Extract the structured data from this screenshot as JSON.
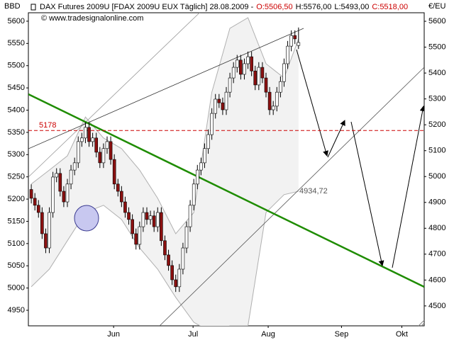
{
  "chart_data": {
    "type": "candlestick",
    "title": "DAX Futures 2009U [FDAX 2009U EUX  Täglich] 28.08.2009 -",
    "ohlc_labels": [
      "O:5506,50",
      "H:5576,00",
      "L:5493,00",
      "C:5518,00"
    ],
    "ohlc_colors": [
      "#cc0000",
      "#000000",
      "#000000",
      "#cc0000"
    ],
    "subtitle": "© www.tradesignalonline.com",
    "y_label": "BBD",
    "y2_label": "€/EU",
    "annotation": "4934,72",
    "x": [
      0,
      1,
      2,
      3,
      4,
      5,
      6,
      7,
      8,
      9,
      10,
      11,
      12,
      13,
      14,
      15,
      16,
      17,
      18,
      19,
      20,
      21,
      22,
      23,
      24,
      25,
      26,
      27,
      28,
      29,
      30,
      31,
      32,
      33,
      34,
      35,
      36,
      37,
      38,
      39,
      40,
      41,
      42,
      43,
      44,
      45,
      46,
      47,
      48,
      49,
      50,
      51,
      52,
      53,
      54,
      55,
      56,
      57,
      58,
      59,
      60,
      61,
      62,
      63,
      64,
      65,
      66,
      67,
      68,
      69,
      70,
      71,
      72,
      73,
      74
    ],
    "open": [
      4950,
      4916,
      4889,
      4861,
      4779,
      4724,
      4861,
      4998,
      5012,
      4943,
      4902,
      4971,
      5025,
      5053,
      5135,
      5149,
      5190,
      5135,
      5149,
      5094,
      5053,
      5108,
      5135,
      5066,
      4971,
      4943,
      4902,
      4861,
      4834,
      4779,
      4738,
      4806,
      4861,
      4834,
      4848,
      4806,
      4861,
      4752,
      4697,
      4656,
      4601,
      4574,
      4642,
      4724,
      4806,
      4889,
      4971,
      5025,
      5053,
      5108,
      5162,
      5244,
      5299,
      5285,
      5258,
      5326,
      5381,
      5422,
      5450,
      5395,
      5436,
      5463,
      5408,
      5354,
      5422,
      5381,
      5326,
      5258,
      5272,
      5326,
      5367,
      5436,
      5504,
      5545,
      5506.5
    ],
    "high": [
      4970,
      4936,
      4909,
      4881,
      4799,
      4881,
      5018,
      5032,
      5032,
      4963,
      4991,
      5045,
      5073,
      5155,
      5169,
      5210,
      5210,
      5169,
      5169,
      5114,
      5128,
      5155,
      5155,
      5086,
      4991,
      4963,
      4922,
      4881,
      4854,
      4799,
      4826,
      4881,
      4881,
      4868,
      4868,
      4881,
      4881,
      4772,
      4717,
      4676,
      4621,
      4662,
      4744,
      4826,
      4909,
      4991,
      5045,
      5073,
      5128,
      5182,
      5264,
      5319,
      5319,
      5305,
      5346,
      5401,
      5442,
      5470,
      5470,
      5456,
      5483,
      5483,
      5428,
      5442,
      5442,
      5401,
      5346,
      5292,
      5346,
      5387,
      5456,
      5524,
      5565,
      5565,
      5576
    ],
    "low": [
      4896,
      4869,
      4841,
      4759,
      4704,
      4704,
      4841,
      4978,
      4923,
      4882,
      4882,
      4951,
      5005,
      5033,
      5115,
      5129,
      5115,
      5115,
      5074,
      5033,
      5033,
      5088,
      5046,
      4951,
      4923,
      4882,
      4841,
      4814,
      4759,
      4718,
      4718,
      4786,
      4814,
      4814,
      4786,
      4786,
      4732,
      4677,
      4636,
      4581,
      4554,
      4554,
      4622,
      4704,
      4786,
      4869,
      4951,
      5005,
      5033,
      5088,
      5142,
      5224,
      5265,
      5238,
      5238,
      5306,
      5361,
      5402,
      5375,
      5375,
      5416,
      5388,
      5334,
      5334,
      5361,
      5306,
      5238,
      5238,
      5252,
      5306,
      5347,
      5416,
      5484,
      5512,
      5493
    ],
    "close": [
      4916,
      4889,
      4861,
      4779,
      4724,
      4861,
      4998,
      5012,
      4943,
      4902,
      4971,
      5025,
      5053,
      5135,
      5149,
      5190,
      5135,
      5149,
      5094,
      5053,
      5108,
      5135,
      5066,
      4971,
      4943,
      4902,
      4861,
      4834,
      4779,
      4738,
      4806,
      4861,
      4834,
      4848,
      4806,
      4861,
      4752,
      4697,
      4656,
      4601,
      4574,
      4642,
      4724,
      4806,
      4889,
      4971,
      5025,
      5053,
      5108,
      5162,
      5244,
      5299,
      5285,
      5258,
      5326,
      5381,
      5422,
      5450,
      5395,
      5436,
      5463,
      5408,
      5354,
      5422,
      5381,
      5326,
      5258,
      5272,
      5326,
      5367,
      5436,
      5504,
      5545,
      5532,
      5518
    ],
    "axis": "y2",
    "up_color": "#ffffff",
    "down_color": "#8b1010",
    "band_x": [
      0,
      5,
      10,
      15,
      20,
      25,
      30,
      35,
      40,
      45,
      50,
      55,
      60,
      65,
      70,
      74
    ],
    "band_upper": [
      4971,
      5025,
      5080,
      5230,
      5149,
      5108,
      5025,
      4916,
      4779,
      4861,
      5326,
      5573,
      5614,
      5436,
      5381,
      5532
    ],
    "band_lower": [
      4574,
      4642,
      4752,
      4861,
      4889,
      4834,
      4724,
      4642,
      4533,
      4437,
      4396,
      4423,
      4423,
      4861,
      4930,
      4943
    ],
    "band_color": "#b0b0b0",
    "hline": 5178,
    "hline_color": "#cc0000",
    "xlim": [
      -0.8,
      108.8
    ],
    "xticks": [
      {
        "value": 22.8,
        "label": "Jun"
      },
      {
        "value": 44.8,
        "label": "Jul"
      },
      {
        "value": 65.6,
        "label": "Aug"
      },
      {
        "value": 85.9,
        "label": "Sep"
      },
      {
        "value": 102.6,
        "label": "Okt"
      }
    ],
    "ylim": [
      4915,
      5619
    ],
    "yticks": [
      4950,
      5000,
      5050,
      5100,
      5150,
      5200,
      5250,
      5300,
      5350,
      5400,
      5450,
      5500,
      5550,
      5600
    ],
    "y2lim": [
      4423,
      5633
    ],
    "y2ticks": [
      4500,
      4600,
      4700,
      4800,
      4900,
      5000,
      5100,
      5200,
      5300,
      5400,
      5500,
      5600
    ]
  }
}
